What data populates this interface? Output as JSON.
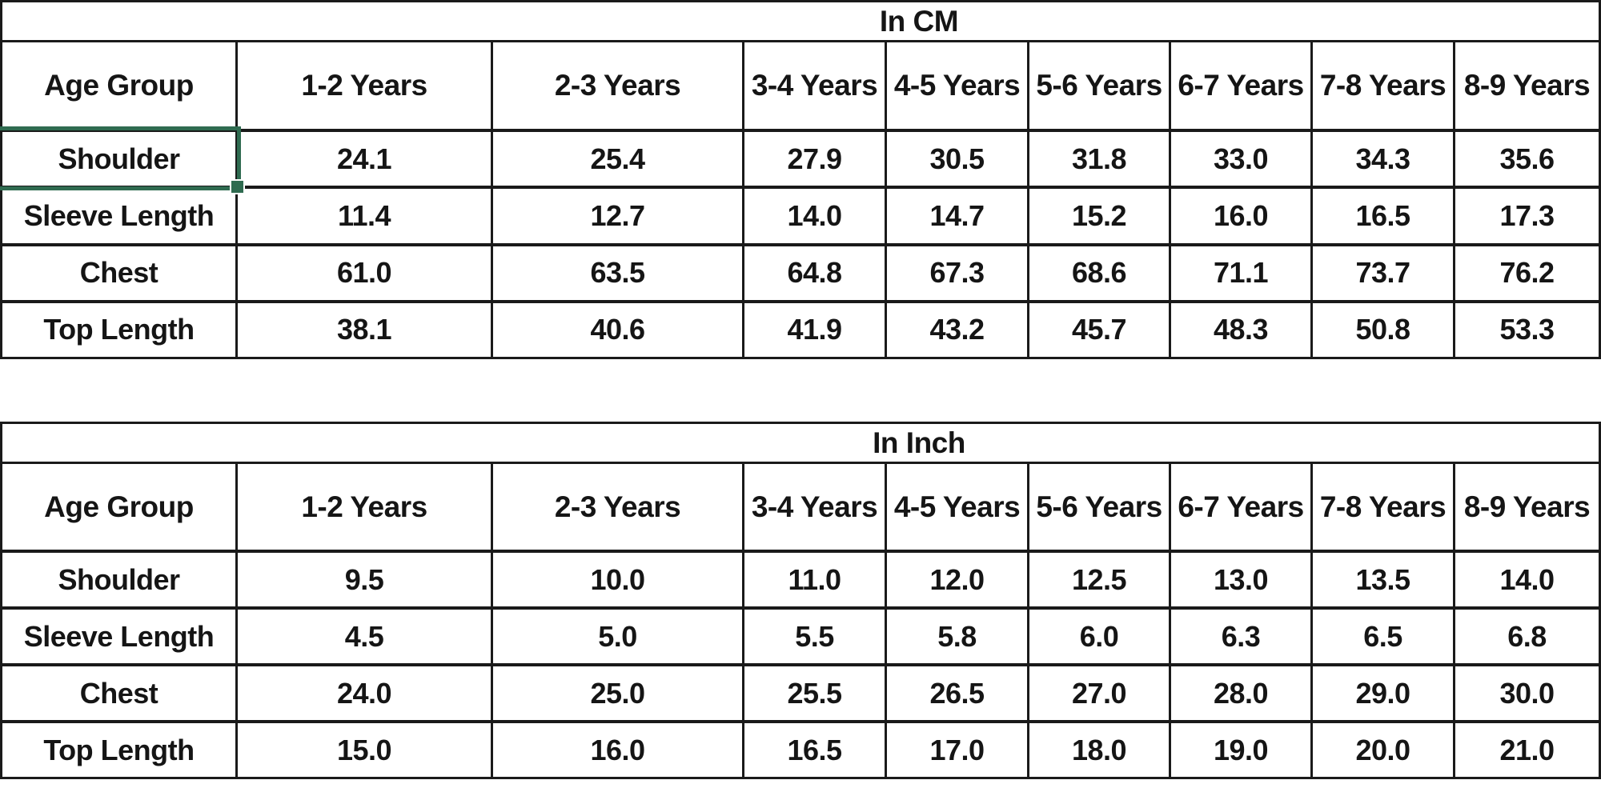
{
  "sheet": {
    "selection": {
      "table": "In CM",
      "selected_cell_label": "Shoulder",
      "border_color": "#2f6b50",
      "has_fill_handle": true
    }
  },
  "tables": [
    {
      "title": "In CM",
      "columns": [
        "Age Group",
        "1-2 Years",
        "2-3 Years",
        "3-4 Years",
        "4-5 Years",
        "5-6 Years",
        "6-7 Years",
        "7-8 Years",
        "8-9 Years"
      ],
      "rows": [
        {
          "label": "Shoulder",
          "values": [
            "24.1",
            "25.4",
            "27.9",
            "30.5",
            "31.8",
            "33.0",
            "34.3",
            "35.6"
          ]
        },
        {
          "label": "Sleeve Length",
          "values": [
            "11.4",
            "12.7",
            "14.0",
            "14.7",
            "15.2",
            "16.0",
            "16.5",
            "17.3"
          ]
        },
        {
          "label": "Chest",
          "values": [
            "61.0",
            "63.5",
            "64.8",
            "67.3",
            "68.6",
            "71.1",
            "73.7",
            "76.2"
          ]
        },
        {
          "label": "Top Length",
          "values": [
            "38.1",
            "40.6",
            "41.9",
            "43.2",
            "45.7",
            "48.3",
            "50.8",
            "53.3"
          ]
        }
      ]
    },
    {
      "title": "In Inch",
      "columns": [
        "Age Group",
        "1-2 Years",
        "2-3 Years",
        "3-4 Years",
        "4-5 Years",
        "5-6 Years",
        "6-7 Years",
        "7-8 Years",
        "8-9 Years"
      ],
      "rows": [
        {
          "label": "Shoulder",
          "values": [
            "9.5",
            "10.0",
            "11.0",
            "12.0",
            "12.5",
            "13.0",
            "13.5",
            "14.0"
          ]
        },
        {
          "label": "Sleeve Length",
          "values": [
            "4.5",
            "5.0",
            "5.5",
            "5.8",
            "6.0",
            "6.3",
            "6.5",
            "6.8"
          ]
        },
        {
          "label": "Chest",
          "values": [
            "24.0",
            "25.0",
            "25.5",
            "26.5",
            "27.0",
            "28.0",
            "29.0",
            "30.0"
          ]
        },
        {
          "label": "Top Length",
          "values": [
            "15.0",
            "16.0",
            "16.5",
            "17.0",
            "18.0",
            "19.0",
            "20.0",
            "21.0"
          ]
        }
      ]
    }
  ]
}
